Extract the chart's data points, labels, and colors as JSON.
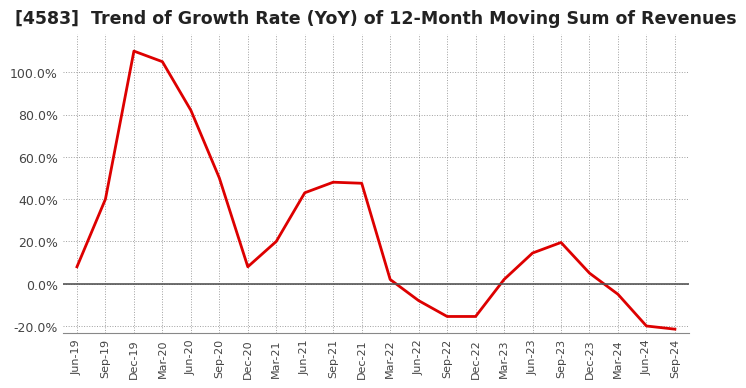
{
  "title": "[4583]  Trend of Growth Rate (YoY) of 12-Month Moving Sum of Revenues",
  "title_fontsize": 12.5,
  "line_color": "#dd0000",
  "line_width": 2.0,
  "background_color": "#ffffff",
  "plot_bg_color": "#f0f0f0",
  "grid_color": "#888888",
  "ylim": [
    -0.235,
    1.18
  ],
  "yticks": [
    -0.2,
    0.0,
    0.2,
    0.4,
    0.6,
    0.8,
    1.0
  ],
  "x_labels": [
    "Jun-19",
    "Sep-19",
    "Dec-19",
    "Mar-20",
    "Jun-20",
    "Sep-20",
    "Dec-20",
    "Mar-21",
    "Jun-21",
    "Sep-21",
    "Dec-21",
    "Mar-22",
    "Jun-22",
    "Sep-22",
    "Dec-22",
    "Mar-23",
    "Jun-23",
    "Sep-23",
    "Dec-23",
    "Mar-24",
    "Jun-24",
    "Sep-24"
  ],
  "y_values": [
    0.08,
    0.4,
    1.1,
    1.05,
    0.82,
    0.5,
    0.08,
    0.2,
    0.43,
    0.48,
    0.475,
    0.02,
    -0.08,
    -0.155,
    -0.155,
    0.02,
    0.145,
    0.195,
    0.05,
    -0.05,
    -0.2,
    -0.215
  ]
}
